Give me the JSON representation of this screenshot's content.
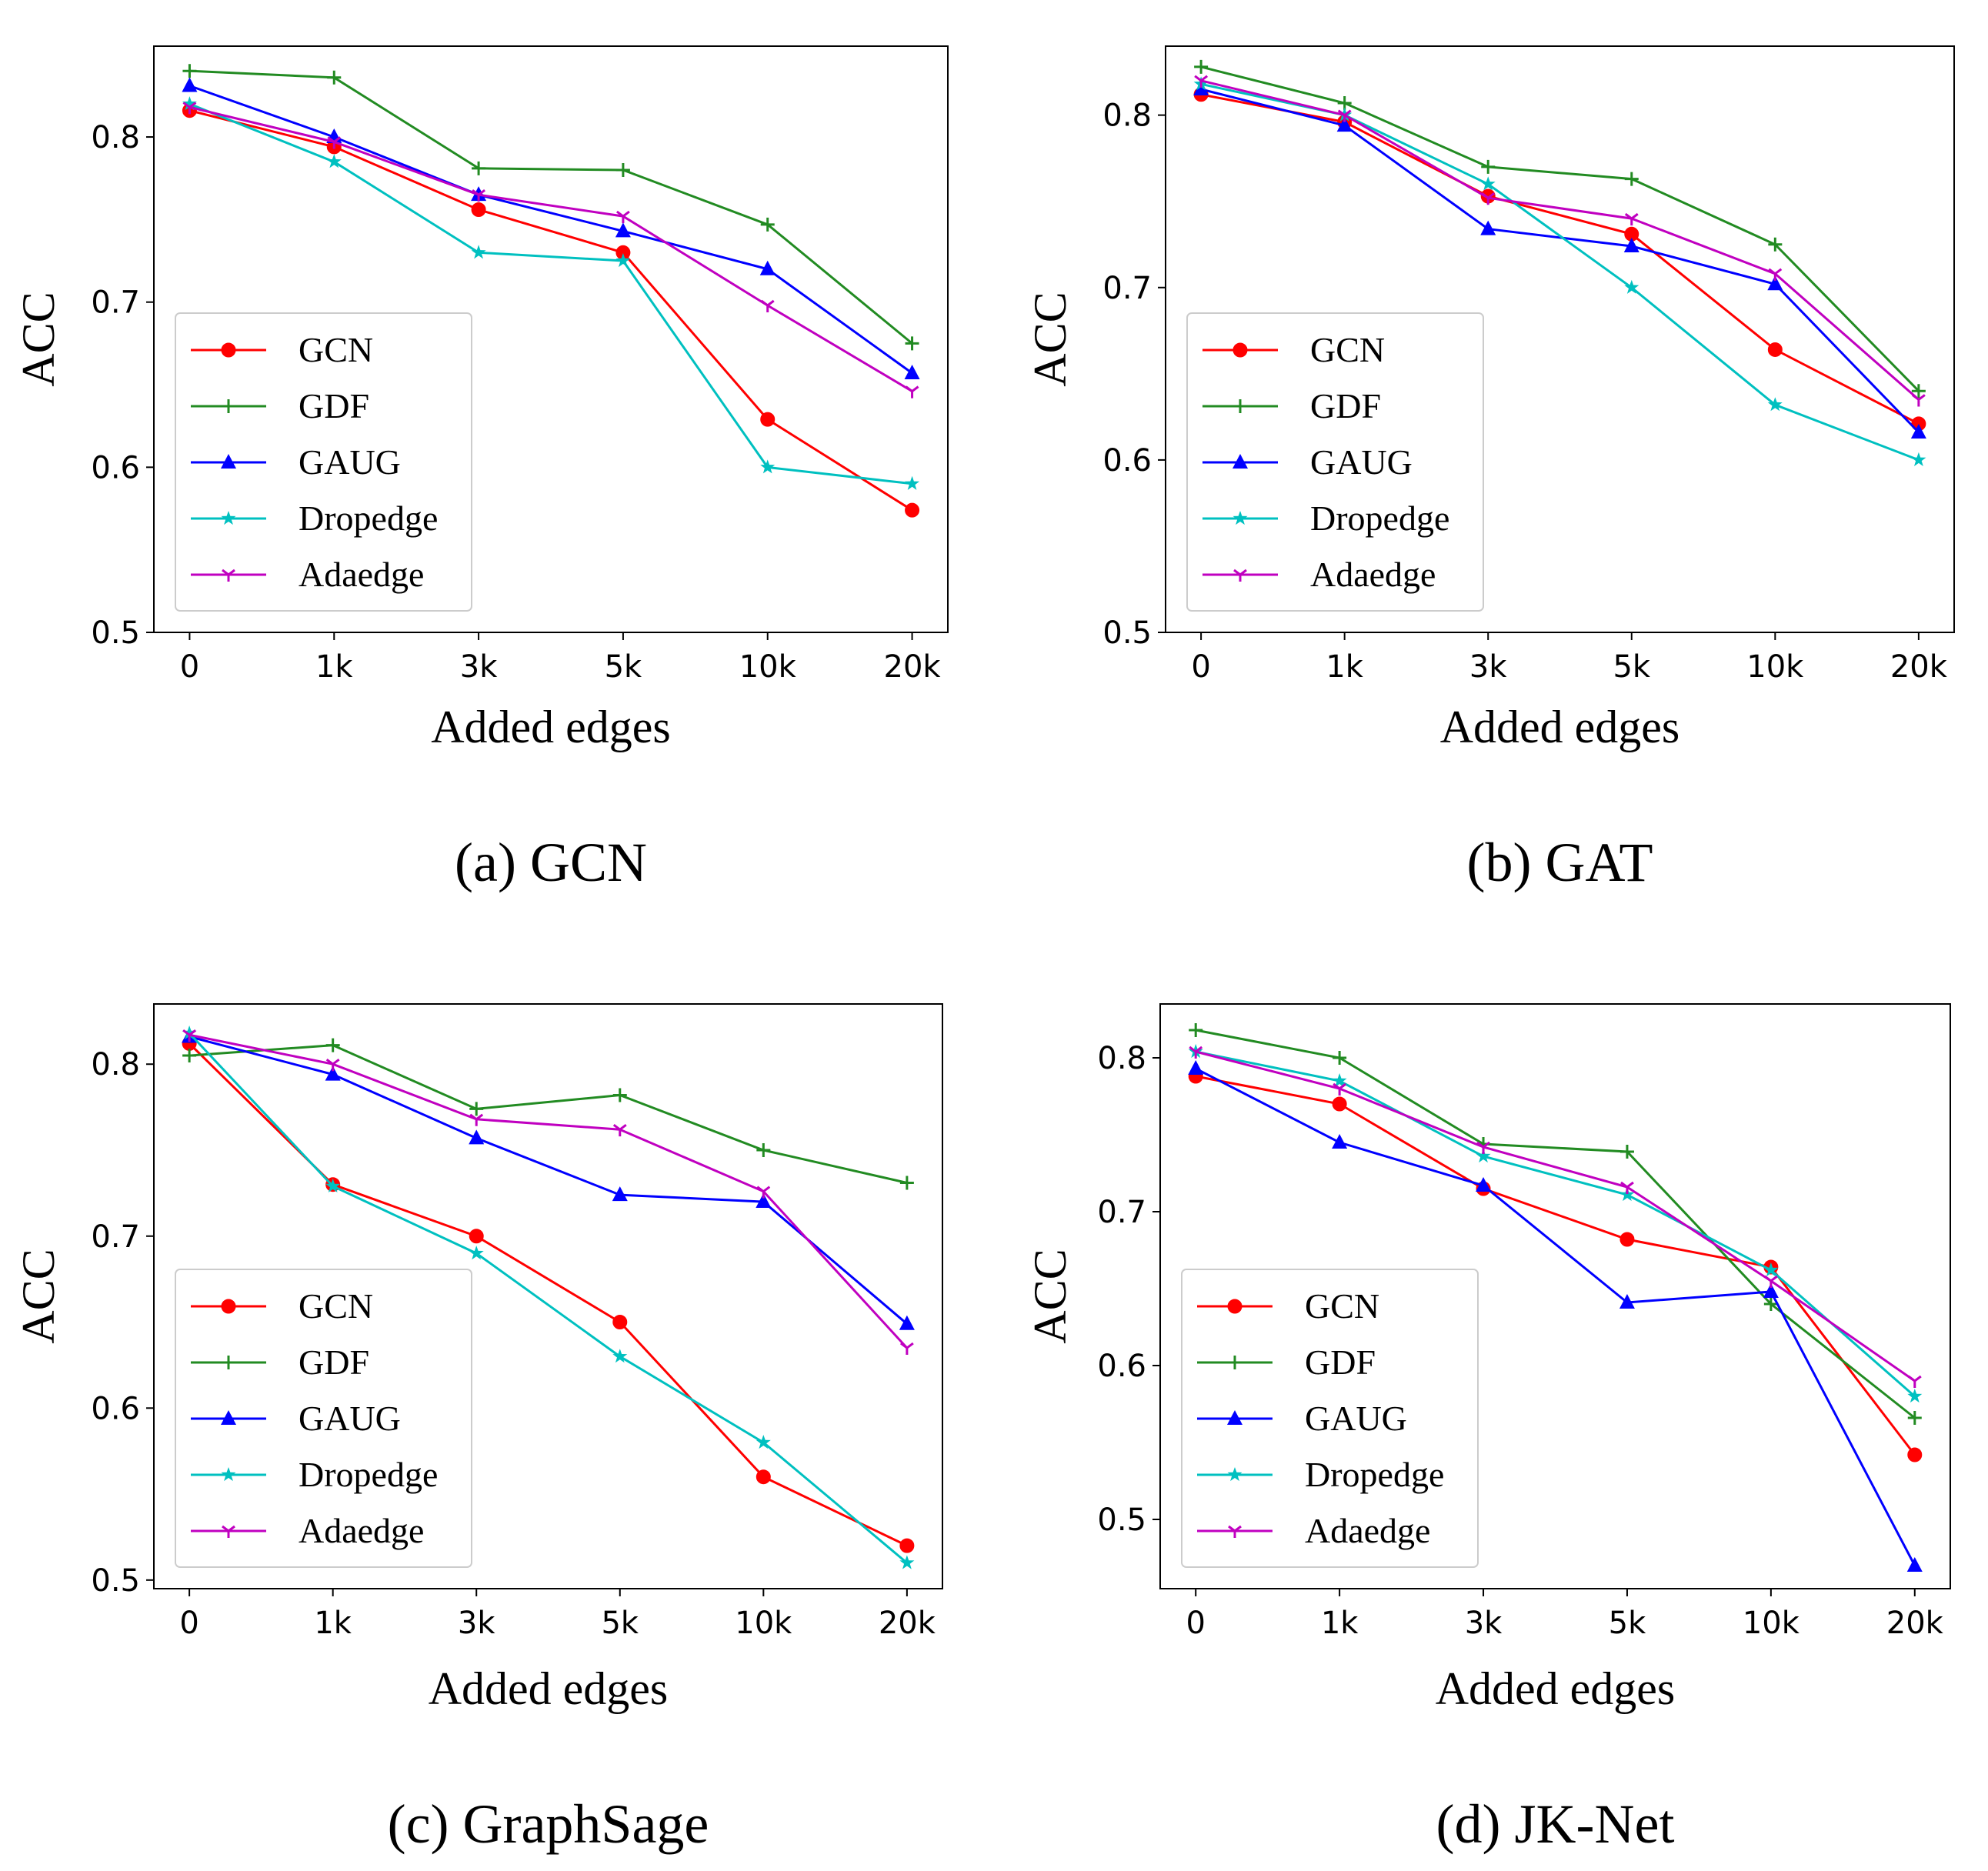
{
  "chart_data": [
    {
      "type": "line",
      "caption": "(a) GCN",
      "xlabel": "Added edges",
      "ylabel": "ACC",
      "categories": [
        "0",
        "1k",
        "3k",
        "5k",
        "10k",
        "20k"
      ],
      "ylim": [
        0.5,
        0.855
      ],
      "yticks": [
        "0.5",
        "0.6",
        "0.7",
        "0.8"
      ],
      "series": [
        {
          "name": "GCN",
          "color": "#ff0000",
          "marker": "circle",
          "values": [
            0.816,
            0.794,
            0.756,
            0.73,
            0.629,
            0.574
          ]
        },
        {
          "name": "GDF",
          "color": "#228b22",
          "marker": "plus",
          "values": [
            0.84,
            0.836,
            0.781,
            0.78,
            0.747,
            0.675
          ]
        },
        {
          "name": "GAUG",
          "color": "#0000ff",
          "marker": "triangle",
          "values": [
            0.831,
            0.8,
            0.765,
            0.743,
            0.72,
            0.657
          ]
        },
        {
          "name": "Dropedge",
          "color": "#00c0c0",
          "marker": "star",
          "values": [
            0.82,
            0.785,
            0.73,
            0.725,
            0.6,
            0.59
          ]
        },
        {
          "name": "Adaedge",
          "color": "#c000c0",
          "marker": "tri-down",
          "values": [
            0.818,
            0.797,
            0.765,
            0.752,
            0.698,
            0.646
          ]
        }
      ],
      "legend": "lower-left"
    },
    {
      "type": "line",
      "caption": "(b) GAT",
      "xlabel": "Added edges",
      "ylabel": "ACC",
      "categories": [
        "0",
        "1k",
        "3k",
        "5k",
        "10k",
        "20k"
      ],
      "ylim": [
        0.5,
        0.84
      ],
      "yticks": [
        "0.5",
        "0.6",
        "0.7",
        "0.8"
      ],
      "series": [
        {
          "name": "GCN",
          "color": "#ff0000",
          "marker": "circle",
          "values": [
            0.812,
            0.796,
            0.753,
            0.731,
            0.664,
            0.621
          ]
        },
        {
          "name": "GDF",
          "color": "#228b22",
          "marker": "plus",
          "values": [
            0.828,
            0.807,
            0.77,
            0.763,
            0.725,
            0.64
          ]
        },
        {
          "name": "GAUG",
          "color": "#0000ff",
          "marker": "triangle",
          "values": [
            0.815,
            0.794,
            0.734,
            0.724,
            0.702,
            0.616
          ]
        },
        {
          "name": "Dropedge",
          "color": "#00c0c0",
          "marker": "star",
          "values": [
            0.818,
            0.8,
            0.76,
            0.7,
            0.632,
            0.6
          ]
        },
        {
          "name": "Adaedge",
          "color": "#c000c0",
          "marker": "tri-down",
          "values": [
            0.82,
            0.8,
            0.752,
            0.74,
            0.708,
            0.635
          ]
        }
      ],
      "legend": "lower-left"
    },
    {
      "type": "line",
      "caption": "(c) GraphSage",
      "xlabel": "Added edges",
      "ylabel": "ACC",
      "categories": [
        "0",
        "1k",
        "3k",
        "5k",
        "10k",
        "20k"
      ],
      "ylim": [
        0.495,
        0.835
      ],
      "yticks": [
        "0.5",
        "0.6",
        "0.7",
        "0.8"
      ],
      "series": [
        {
          "name": "GCN",
          "color": "#ff0000",
          "marker": "circle",
          "values": [
            0.812,
            0.73,
            0.7,
            0.65,
            0.56,
            0.52
          ]
        },
        {
          "name": "GDF",
          "color": "#228b22",
          "marker": "plus",
          "values": [
            0.805,
            0.811,
            0.774,
            0.782,
            0.75,
            0.731
          ]
        },
        {
          "name": "GAUG",
          "color": "#0000ff",
          "marker": "triangle",
          "values": [
            0.816,
            0.794,
            0.757,
            0.724,
            0.72,
            0.649
          ]
        },
        {
          "name": "Dropedge",
          "color": "#00c0c0",
          "marker": "star",
          "values": [
            0.818,
            0.729,
            0.69,
            0.63,
            0.58,
            0.51
          ]
        },
        {
          "name": "Adaedge",
          "color": "#c000c0",
          "marker": "tri-down",
          "values": [
            0.817,
            0.8,
            0.768,
            0.762,
            0.726,
            0.635
          ]
        }
      ],
      "legend": "lower-left"
    },
    {
      "type": "line",
      "caption": "(d) JK-Net",
      "xlabel": "Added edges",
      "ylabel": "ACC",
      "categories": [
        "0",
        "1k",
        "3k",
        "5k",
        "10k",
        "20k"
      ],
      "ylim": [
        0.455,
        0.835
      ],
      "yticks": [
        "0.5",
        "0.6",
        "0.7",
        "0.8"
      ],
      "series": [
        {
          "name": "GCN",
          "color": "#ff0000",
          "marker": "circle",
          "values": [
            0.788,
            0.77,
            0.715,
            0.682,
            0.664,
            0.542
          ]
        },
        {
          "name": "GDF",
          "color": "#228b22",
          "marker": "plus",
          "values": [
            0.818,
            0.8,
            0.744,
            0.739,
            0.64,
            0.566
          ]
        },
        {
          "name": "GAUG",
          "color": "#0000ff",
          "marker": "triangle",
          "values": [
            0.793,
            0.745,
            0.717,
            0.641,
            0.648,
            0.47
          ]
        },
        {
          "name": "Dropedge",
          "color": "#00c0c0",
          "marker": "star",
          "values": [
            0.804,
            0.785,
            0.736,
            0.711,
            0.662,
            0.58
          ]
        },
        {
          "name": "Adaedge",
          "color": "#c000c0",
          "marker": "tri-down",
          "values": [
            0.804,
            0.78,
            0.742,
            0.716,
            0.655,
            0.59
          ]
        }
      ],
      "legend": "lower-left"
    }
  ]
}
